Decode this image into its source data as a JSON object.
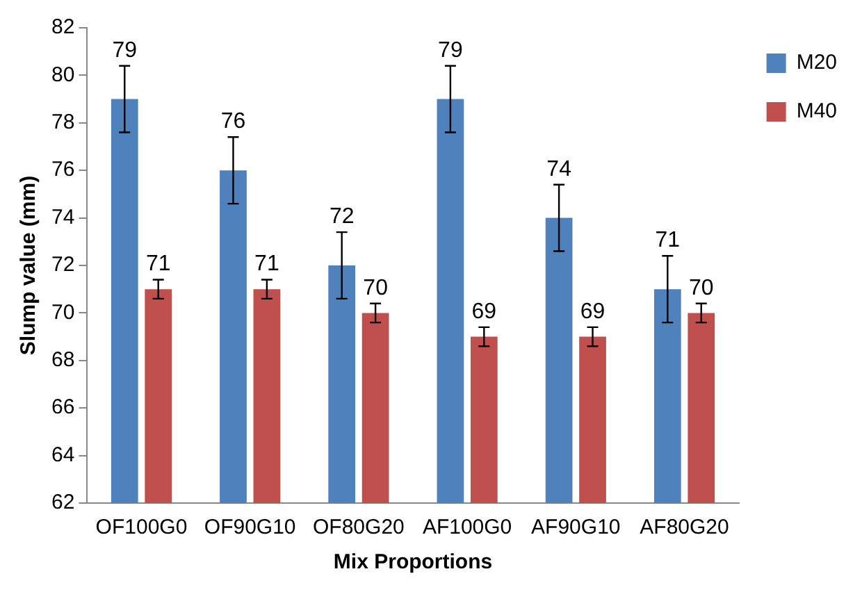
{
  "chart_data": {
    "type": "bar",
    "xlabel": "Mix Proportions",
    "ylabel": "Slump value (mm)",
    "categories": [
      "OF100G0",
      "OF90G10",
      "OF80G20",
      "AF100G0",
      "AF90G10",
      "AF80G20"
    ],
    "series": [
      {
        "name": "M20",
        "color": "#4f81bd",
        "values": [
          79,
          76,
          72,
          79,
          74,
          71
        ],
        "errors": [
          1.4,
          1.4,
          1.4,
          1.4,
          1.4,
          1.4
        ]
      },
      {
        "name": "M40",
        "color": "#c0504d",
        "values": [
          71,
          71,
          70,
          69,
          69,
          70
        ],
        "errors": [
          0.4,
          0.4,
          0.4,
          0.4,
          0.4,
          0.4
        ]
      }
    ],
    "ylim": [
      62,
      82
    ],
    "yticks": [
      62,
      64,
      66,
      68,
      70,
      72,
      74,
      76,
      78,
      80,
      82
    ],
    "grid": false,
    "legend": "top right",
    "data_labels": true
  }
}
